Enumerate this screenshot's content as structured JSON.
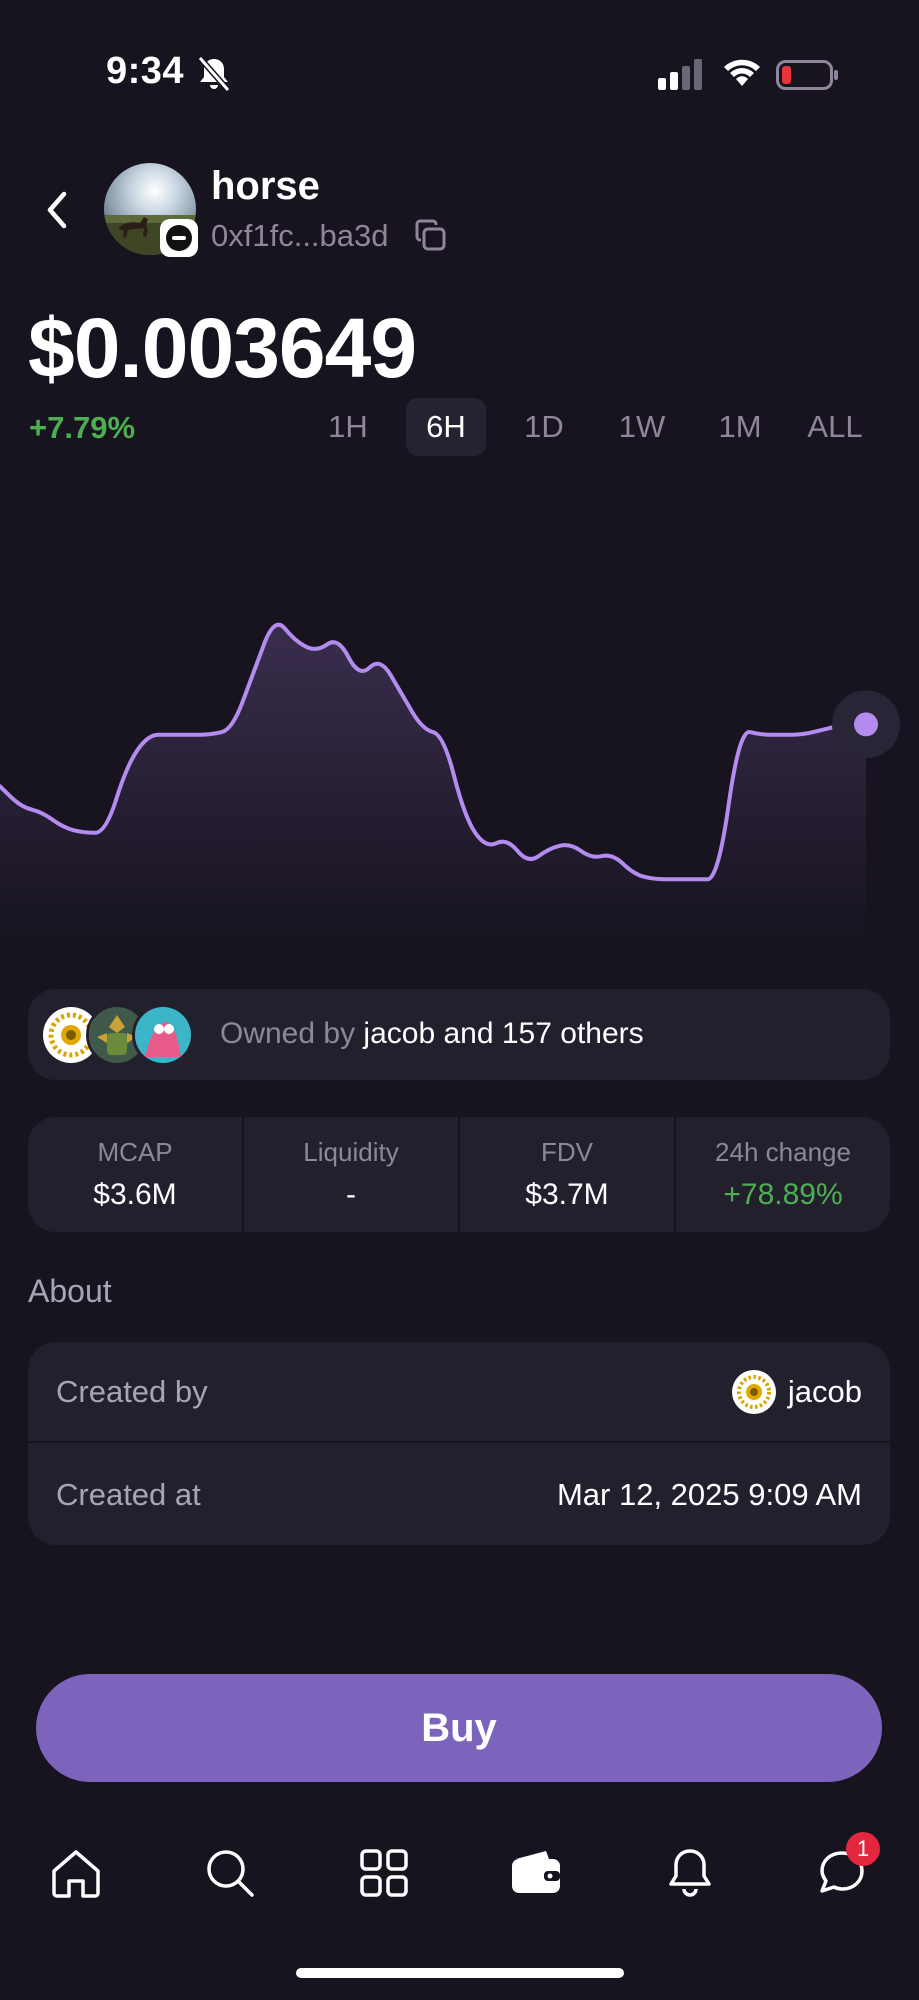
{
  "status_bar": {
    "time": "9:34"
  },
  "token": {
    "name": "horse",
    "address": "0xf1fc...ba3d",
    "price": "$0.003649",
    "change": "+7.79%"
  },
  "timeframes": [
    "1H",
    "6H",
    "1D",
    "1W",
    "1M",
    "ALL"
  ],
  "timeframe_selected": "6H",
  "chart_data": {
    "type": "line",
    "values": [
      62,
      58,
      57,
      54,
      53,
      53,
      66,
      72,
      72,
      72,
      72,
      73,
      84,
      95,
      90,
      88,
      91,
      83,
      87,
      80,
      73,
      72,
      56,
      50,
      52,
      47,
      50,
      51,
      48,
      49,
      45,
      44,
      44,
      44,
      44,
      73,
      72,
      72,
      72,
      73,
      74,
      74
    ],
    "line_color": "#b48cf0"
  },
  "owners": {
    "prefix": "Owned by",
    "names": "jacob and 157 others"
  },
  "stats": [
    {
      "label": "MCAP",
      "value": "$3.6M"
    },
    {
      "label": "Liquidity",
      "value": "-"
    },
    {
      "label": "FDV",
      "value": "$3.7M"
    },
    {
      "label": "24h change",
      "value": "+78.89%"
    }
  ],
  "about": {
    "title": "About",
    "created_by_label": "Created by",
    "created_by_value": "jacob",
    "created_at_label": "Created at",
    "created_at_value": "Mar 12, 2025 9:09 AM"
  },
  "buy_label": "Buy",
  "nav": {
    "items": [
      "home-icon",
      "search-icon",
      "grid-icon",
      "wallet-icon",
      "bell-icon",
      "chat-icon"
    ],
    "chat_badge": "1"
  },
  "colors": {
    "background": "#17131f",
    "card": "#23202e",
    "accent": "#7c64bd",
    "positive": "#4caf50",
    "badge": "#e2273f"
  }
}
